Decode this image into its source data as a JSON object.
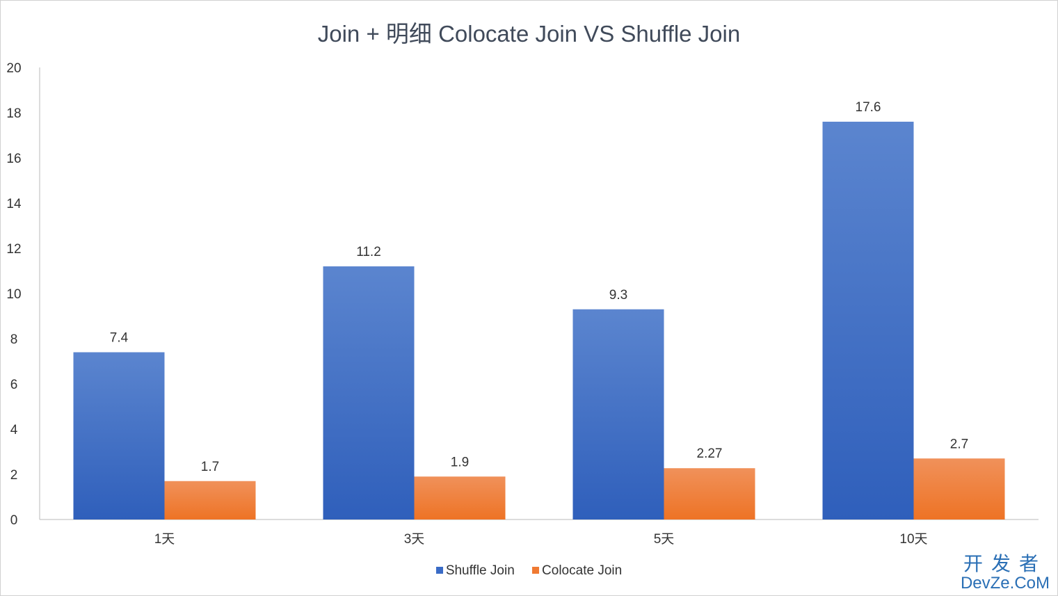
{
  "chart_data": {
    "type": "bar",
    "title": "Join + 明细 Colocate Join VS Shuffle Join",
    "categories": [
      "1天",
      "3天",
      "5天",
      "10天"
    ],
    "series": [
      {
        "name": "Shuffle Join",
        "values": [
          7.4,
          11.2,
          9.3,
          17.6
        ],
        "labels": [
          "7.4",
          "11.2",
          "9.3",
          "17.6"
        ],
        "color": "#3a6bc6"
      },
      {
        "name": "Colocate Join",
        "values": [
          1.7,
          1.9,
          2.27,
          2.7
        ],
        "labels": [
          "1.7",
          "1.9",
          "2.27",
          "2.7"
        ],
        "color": "#f07a32"
      }
    ],
    "ylim": [
      0,
      20
    ],
    "yticks": [
      "0",
      "2",
      "4",
      "6",
      "8",
      "10",
      "12",
      "14",
      "16",
      "18",
      "20"
    ],
    "grid": false,
    "legend": "bottom"
  },
  "watermark": {
    "line1": "开发者",
    "line2": "DevZe.CoM"
  }
}
